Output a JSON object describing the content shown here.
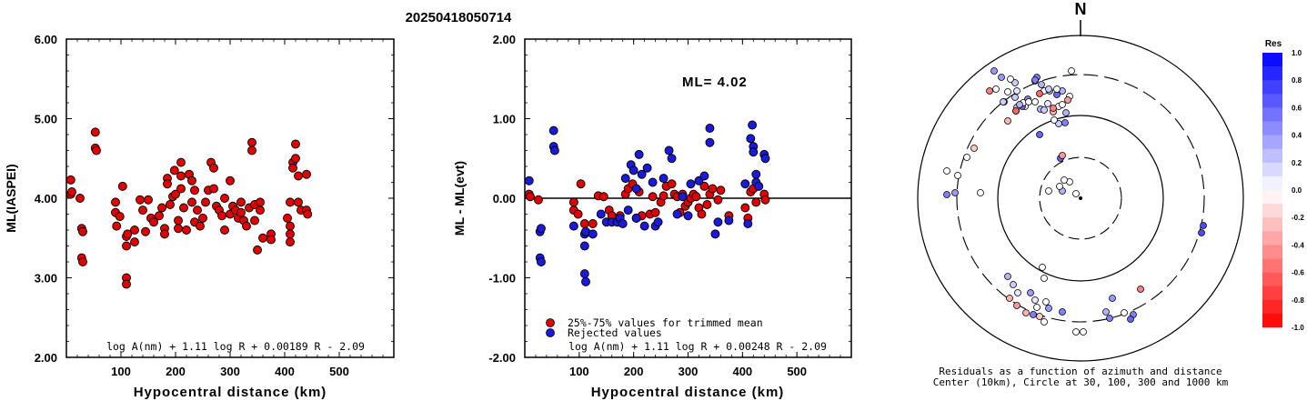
{
  "title": "20250418050714",
  "left_panel": {
    "ylabel": "ML(IASPEI)",
    "xlabel": "Hypocentral distance (km)",
    "formula": "log A(nm) + 1.11 log R + 0.00189 R - 2.09",
    "yticks": [
      "2.00",
      "3.00",
      "4.00",
      "5.00",
      "6.00"
    ],
    "xticks": [
      "100",
      "200",
      "300",
      "400",
      "500"
    ]
  },
  "middle_panel": {
    "ylabel": "ML - ML(evt)",
    "xlabel": "Hypocentral distance (km)",
    "ml_label": "ML= 4.02",
    "formula": "log A(nm) + 1.11 log R + 0.00248 R - 2.09",
    "legend_used": "25%-75% values for trimmed mean",
    "legend_rejected": "Rejected values",
    "yticks": [
      "-2.00",
      "-1.00",
      "0.00",
      "1.00",
      "2.00"
    ],
    "xticks": [
      "100",
      "200",
      "300",
      "400",
      "500"
    ]
  },
  "right_panel": {
    "north_label": "N",
    "caption_line1": "Residuals as a function of azimuth and distance",
    "caption_line2": "Center (10km), Circle at 30, 100, 300 and 1000 km",
    "colorbar_title": "Res",
    "colorbar_ticks": [
      "1.0",
      "0.8",
      "0.6",
      "0.4",
      "0.2",
      "0.0",
      "-0.2",
      "-0.4",
      "-0.6",
      "-0.8",
      "-1.0"
    ]
  },
  "colors": {
    "used": "#e00000",
    "rejected": "#1a1ad8"
  },
  "chart_data": [
    {
      "type": "scatter",
      "title": "20250418050714",
      "xlabel": "Hypocentral distance (km)",
      "ylabel": "ML(IASPEI)",
      "xlim": [
        0,
        600
      ],
      "ylim": [
        2.0,
        6.0
      ],
      "points": [
        [
          8,
          4.23
        ],
        [
          8,
          4.05
        ],
        [
          10,
          4.08
        ],
        [
          25,
          4.0
        ],
        [
          28,
          3.62
        ],
        [
          30,
          3.58
        ],
        [
          28,
          3.25
        ],
        [
          30,
          3.2
        ],
        [
          53,
          4.83
        ],
        [
          53,
          4.63
        ],
        [
          55,
          4.6
        ],
        [
          90,
          3.95
        ],
        [
          90,
          3.82
        ],
        [
          92,
          3.65
        ],
        [
          98,
          3.77
        ],
        [
          103,
          4.15
        ],
        [
          110,
          3.52
        ],
        [
          110,
          3.4
        ],
        [
          112,
          3.55
        ],
        [
          110,
          3.0
        ],
        [
          110,
          2.92
        ],
        [
          125,
          3.6
        ],
        [
          125,
          3.45
        ],
        [
          135,
          3.98
        ],
        [
          140,
          3.85
        ],
        [
          145,
          3.58
        ],
        [
          150,
          3.98
        ],
        [
          155,
          3.75
        ],
        [
          160,
          3.7
        ],
        [
          170,
          3.78
        ],
        [
          175,
          3.88
        ],
        [
          180,
          3.62
        ],
        [
          180,
          3.55
        ],
        [
          185,
          4.25
        ],
        [
          185,
          4.18
        ],
        [
          190,
          3.92
        ],
        [
          195,
          4.02
        ],
        [
          198,
          4.35
        ],
        [
          200,
          4.05
        ],
        [
          205,
          3.72
        ],
        [
          205,
          3.62
        ],
        [
          210,
          4.45
        ],
        [
          210,
          4.28
        ],
        [
          210,
          4.12
        ],
        [
          215,
          3.88
        ],
        [
          220,
          3.6
        ],
        [
          225,
          4.3
        ],
        [
          230,
          3.95
        ],
        [
          230,
          4.22
        ],
        [
          235,
          4.1
        ],
        [
          235,
          3.7
        ],
        [
          240,
          3.85
        ],
        [
          245,
          3.65
        ],
        [
          250,
          3.75
        ],
        [
          255,
          3.95
        ],
        [
          260,
          4.1
        ],
        [
          265,
          4.45
        ],
        [
          270,
          4.38
        ],
        [
          270,
          4.12
        ],
        [
          275,
          3.9
        ],
        [
          280,
          3.85
        ],
        [
          285,
          3.78
        ],
        [
          290,
          4.0
        ],
        [
          290,
          3.6
        ],
        [
          300,
          3.8
        ],
        [
          300,
          4.22
        ],
        [
          305,
          3.9
        ],
        [
          310,
          3.85
        ],
        [
          315,
          3.75
        ],
        [
          320,
          3.95
        ],
        [
          320,
          3.82
        ],
        [
          325,
          3.72
        ],
        [
          330,
          3.65
        ],
        [
          335,
          3.88
        ],
        [
          340,
          4.7
        ],
        [
          340,
          4.6
        ],
        [
          345,
          3.92
        ],
        [
          345,
          3.72
        ],
        [
          350,
          3.35
        ],
        [
          355,
          3.85
        ],
        [
          355,
          3.95
        ],
        [
          360,
          3.5
        ],
        [
          375,
          3.55
        ],
        [
          375,
          3.48
        ],
        [
          405,
          3.75
        ],
        [
          410,
          3.65
        ],
        [
          410,
          3.55
        ],
        [
          410,
          3.45
        ],
        [
          410,
          3.95
        ],
        [
          415,
          4.45
        ],
        [
          415,
          4.38
        ],
        [
          420,
          4.5
        ],
        [
          420,
          4.68
        ],
        [
          425,
          4.28
        ],
        [
          425,
          3.95
        ],
        [
          430,
          3.85
        ],
        [
          440,
          4.3
        ],
        [
          440,
          3.85
        ],
        [
          442,
          3.8
        ]
      ]
    },
    {
      "type": "scatter",
      "title": "ML= 4.02",
      "xlabel": "Hypocentral distance (km)",
      "ylabel": "ML - ML(evt)",
      "xlim": [
        0,
        600
      ],
      "ylim": [
        -2.0,
        2.0
      ],
      "series": [
        {
          "name": "25%-75% values for trimmed mean",
          "points": [
            [
              8,
              0.05
            ],
            [
              10,
              0.02
            ],
            [
              25,
              -0.02
            ],
            [
              90,
              -0.15
            ],
            [
              90,
              -0.05
            ],
            [
              98,
              -0.2
            ],
            [
              103,
              0.18
            ],
            [
              110,
              -0.32
            ],
            [
              125,
              -0.32
            ],
            [
              135,
              0.03
            ],
            [
              145,
              0.02
            ],
            [
              155,
              -0.15
            ],
            [
              160,
              -0.22
            ],
            [
              175,
              -0.22
            ],
            [
              185,
              0.05
            ],
            [
              190,
              0.12
            ],
            [
              198,
              0.18
            ],
            [
              205,
              -0.25
            ],
            [
              210,
              0.08
            ],
            [
              215,
              -0.22
            ],
            [
              230,
              -0.2
            ],
            [
              235,
              0.02
            ],
            [
              240,
              -0.18
            ],
            [
              250,
              -0.05
            ],
            [
              255,
              0.03
            ],
            [
              260,
              0.15
            ],
            [
              270,
              0.18
            ],
            [
              275,
              0.05
            ],
            [
              280,
              0.02
            ],
            [
              285,
              -0.18
            ],
            [
              290,
              0.05
            ],
            [
              295,
              -0.1
            ],
            [
              300,
              -0.05
            ],
            [
              305,
              0.0
            ],
            [
              310,
              0.05
            ],
            [
              315,
              0.02
            ],
            [
              320,
              -0.12
            ],
            [
              325,
              -0.2
            ],
            [
              330,
              0.15
            ],
            [
              335,
              -0.08
            ],
            [
              340,
              0.05
            ],
            [
              345,
              0.12
            ],
            [
              355,
              -0.02
            ],
            [
              360,
              0.1
            ],
            [
              375,
              -0.22
            ],
            [
              405,
              -0.12
            ],
            [
              410,
              -0.25
            ],
            [
              415,
              0.08
            ],
            [
              420,
              0.12
            ],
            [
              425,
              -0.05
            ],
            [
              440,
              0.05
            ],
            [
              442,
              -0.02
            ]
          ]
        },
        {
          "name": "Rejected values",
          "points": [
            [
              8,
              0.22
            ],
            [
              28,
              -0.42
            ],
            [
              30,
              -0.38
            ],
            [
              28,
              -0.75
            ],
            [
              30,
              -0.8
            ],
            [
              53,
              0.85
            ],
            [
              53,
              0.65
            ],
            [
              55,
              0.6
            ],
            [
              90,
              -0.35
            ],
            [
              110,
              -0.45
            ],
            [
              112,
              -0.42
            ],
            [
              110,
              -0.6
            ],
            [
              110,
              -0.95
            ],
            [
              112,
              -1.05
            ],
            [
              125,
              -0.45
            ],
            [
              140,
              -0.2
            ],
            [
              150,
              -0.3
            ],
            [
              160,
              -0.3
            ],
            [
              170,
              -0.3
            ],
            [
              175,
              -0.25
            ],
            [
              180,
              -0.32
            ],
            [
              185,
              0.25
            ],
            [
              190,
              -0.15
            ],
            [
              195,
              0.42
            ],
            [
              200,
              0.35
            ],
            [
              205,
              0.12
            ],
            [
              205,
              -0.25
            ],
            [
              210,
              0.55
            ],
            [
              215,
              0.3
            ],
            [
              220,
              -0.35
            ],
            [
              225,
              0.38
            ],
            [
              235,
              0.2
            ],
            [
              240,
              -0.35
            ],
            [
              245,
              -0.3
            ],
            [
              255,
              0.25
            ],
            [
              265,
              0.6
            ],
            [
              270,
              0.5
            ],
            [
              280,
              -0.2
            ],
            [
              290,
              0.02
            ],
            [
              300,
              -0.22
            ],
            [
              305,
              0.18
            ],
            [
              320,
              0.22
            ],
            [
              330,
              0.28
            ],
            [
              340,
              0.88
            ],
            [
              340,
              0.7
            ],
            [
              350,
              -0.45
            ],
            [
              355,
              -0.3
            ],
            [
              375,
              -0.28
            ],
            [
              405,
              0.18
            ],
            [
              410,
              -0.32
            ],
            [
              415,
              0.75
            ],
            [
              418,
              0.92
            ],
            [
              420,
              0.65
            ],
            [
              420,
              0.58
            ],
            [
              425,
              0.3
            ],
            [
              425,
              0.2
            ],
            [
              430,
              0.15
            ],
            [
              440,
              0.55
            ],
            [
              442,
              0.5
            ]
          ]
        }
      ]
    },
    {
      "type": "scatter",
      "title": "Residuals as a function of azimuth and distance",
      "xlabel": "Center (10km), Circle at 30, 100, 300 and 1000 km",
      "colorbar_range": [
        -1.0,
        1.0
      ],
      "points": [
        [
          -24,
          -101,
          0.0
        ],
        [
          -24,
          -82,
          0.2
        ],
        [
          -16,
          -94,
          0.3
        ],
        [
          -48,
          -133,
          0.5
        ],
        [
          -44,
          -98,
          0.3
        ],
        [
          -26,
          -114,
          0.6
        ],
        [
          -50,
          -129,
          0.1
        ],
        [
          -72,
          -127,
          0.2
        ],
        [
          -84,
          -106,
          0.3
        ],
        [
          -36,
          -104,
          0.1
        ],
        [
          -20,
          -118,
          0.3
        ],
        [
          -40,
          -118,
          0.0
        ],
        [
          -77,
          -131,
          0.0
        ],
        [
          -70,
          -118,
          0.1
        ],
        [
          -93,
          -120,
          0.0
        ],
        [
          -61,
          -101,
          0.0
        ],
        [
          -12,
          -112,
          0.0
        ],
        [
          -71,
          -96,
          0.0
        ],
        [
          -34,
          -118,
          0.3
        ],
        [
          -87,
          -133,
          0.4
        ],
        [
          -10,
          -140,
          0.0
        ],
        [
          -95,
          -140,
          0.4
        ],
        [
          -64,
          -101,
          0.6
        ],
        [
          -58,
          -109,
          0.5
        ],
        [
          -72,
          -111,
          0.2
        ],
        [
          -43,
          -125,
          0.3
        ],
        [
          -26,
          -120,
          0.0
        ],
        [
          -50,
          -106,
          0.0
        ],
        [
          -63,
          -105,
          0.0
        ],
        [
          -45,
          -115,
          -0.6
        ],
        [
          -20,
          -103,
          0.0
        ],
        [
          -40,
          -97,
          0.2
        ],
        [
          -50,
          -130,
          0.5
        ],
        [
          -30,
          -95,
          -0.3
        ],
        [
          -29,
          -86,
          0.0
        ],
        [
          -17,
          -83,
          0.5
        ],
        [
          -14,
          -108,
          -0.4
        ],
        [
          -35,
          -120,
          0.2
        ],
        [
          -80,
          -85,
          -0.3
        ],
        [
          -57,
          -106,
          0.0
        ],
        [
          -70,
          -100,
          -0.3
        ],
        [
          -71,
          -96,
          -0.6
        ],
        [
          -30,
          -99,
          -0.5
        ],
        [
          -85,
          -106,
          0.2
        ],
        [
          -80,
          -117,
          0.0
        ],
        [
          -67,
          -103,
          0.3
        ],
        [
          -100,
          -118,
          -0.5
        ]
      ]
    }
  ]
}
